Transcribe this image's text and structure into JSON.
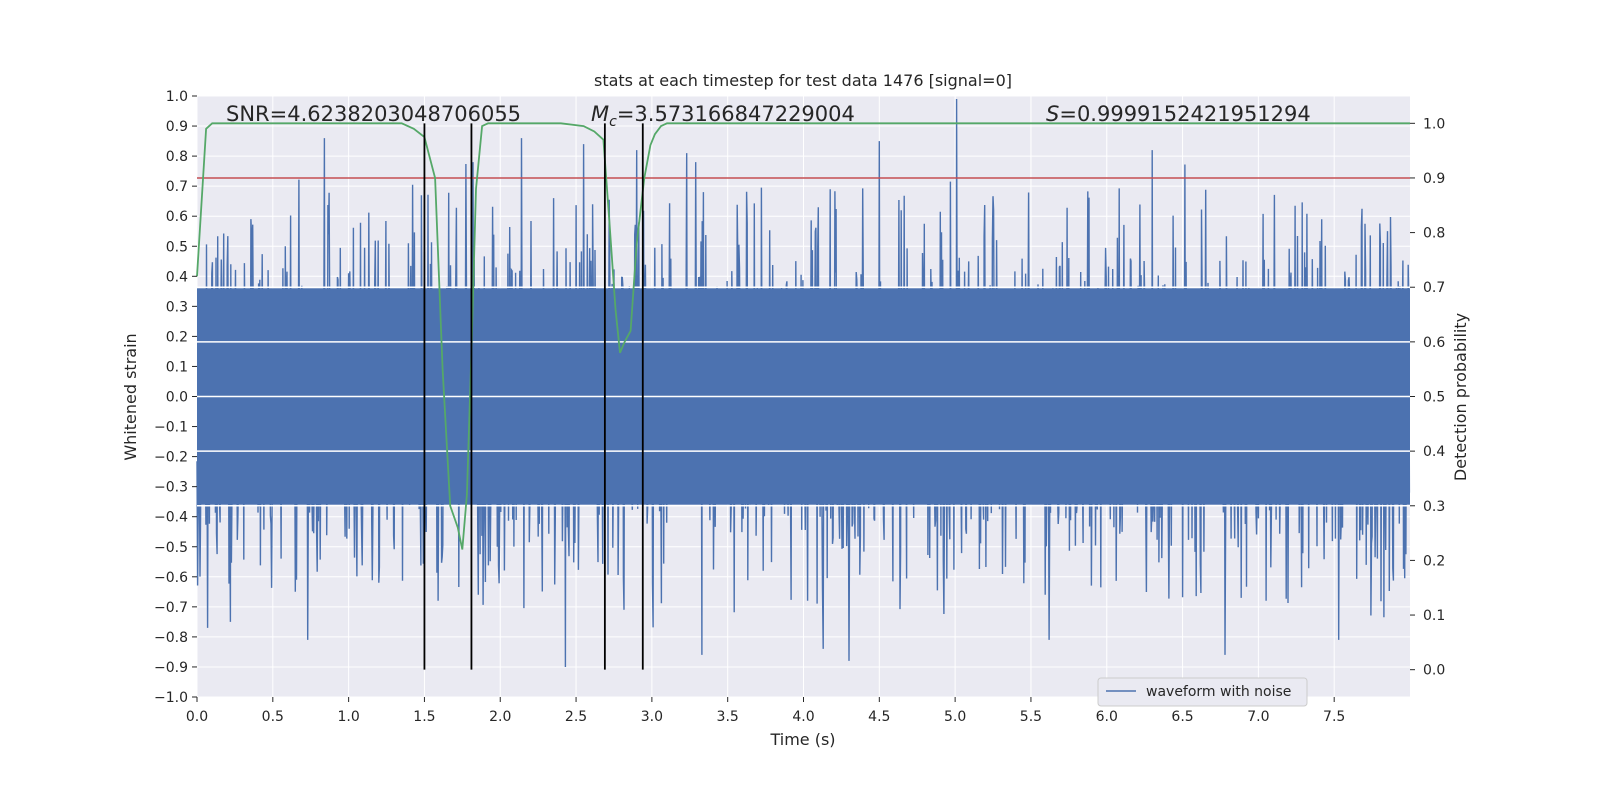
{
  "chart_data": {
    "type": "line",
    "title": "stats at each timestep for test data 1476 [signal=0]",
    "xlabel": "Time (s)",
    "ylabel": "Whitened strain",
    "ylabel_right": "Detection probability",
    "xlim": [
      0.0,
      8.0
    ],
    "ylim": [
      -1.0,
      1.0
    ],
    "ylim_right": [
      -0.05,
      1.05
    ],
    "x_ticks": [
      0.0,
      0.5,
      1.0,
      1.5,
      2.0,
      2.5,
      3.0,
      3.5,
      4.0,
      4.5,
      5.0,
      5.5,
      6.0,
      6.5,
      7.0,
      7.5
    ],
    "x_tick_labels": [
      "0.0",
      "0.5",
      "1.0",
      "1.5",
      "2.0",
      "2.5",
      "3.0",
      "3.5",
      "4.0",
      "4.5",
      "5.0",
      "5.5",
      "6.0",
      "6.5",
      "7.0",
      "7.5"
    ],
    "y_ticks": [
      -1.0,
      -0.9,
      -0.8,
      -0.7,
      -0.6,
      -0.5,
      -0.4,
      -0.3,
      -0.2,
      -0.1,
      0.0,
      0.1,
      0.2,
      0.3,
      0.4,
      0.5,
      0.6,
      0.7,
      0.8,
      0.9,
      1.0
    ],
    "y_tick_labels": [
      "−1.0",
      "−0.9",
      "−0.8",
      "−0.7",
      "−0.6",
      "−0.5",
      "−0.4",
      "−0.3",
      "−0.2",
      "−0.1",
      "0.0",
      "0.1",
      "0.2",
      "0.3",
      "0.4",
      "0.5",
      "0.6",
      "0.7",
      "0.8",
      "0.9",
      "1.0"
    ],
    "y_right_ticks": [
      0.0,
      0.1,
      0.2,
      0.3,
      0.4,
      0.5,
      0.6,
      0.7,
      0.8,
      0.9,
      1.0
    ],
    "y_right_tick_labels": [
      "0.0",
      "0.1",
      "0.2",
      "0.3",
      "0.4",
      "0.5",
      "0.6",
      "0.7",
      "0.8",
      "0.9",
      "1.0"
    ],
    "grid": true,
    "annotations": {
      "snr": "SNR=4.6238203048706055",
      "mc_symbol": "M",
      "mc_sub": "c",
      "mc_value": "=3.573166847229004",
      "s_symbol": "S",
      "s_value": "=0.9999152421951294"
    },
    "legend": {
      "position": "lower-right",
      "entries": [
        "waveform with noise"
      ]
    },
    "waveform": {
      "name": "waveform with noise",
      "color": "#4c72b0",
      "sample_rate_hz": 256,
      "duration_s": 8.0,
      "core_amplitude": 0.36,
      "peaks": [
        {
          "t": 0.84,
          "v": 0.86
        },
        {
          "t": 1.48,
          "v": 0.67
        },
        {
          "t": 1.82,
          "v": 0.78
        },
        {
          "t": 2.14,
          "v": 0.86
        },
        {
          "t": 2.55,
          "v": 0.84
        },
        {
          "t": 2.9,
          "v": 0.82
        },
        {
          "t": 3.23,
          "v": 0.81
        },
        {
          "t": 4.5,
          "v": 0.85
        },
        {
          "t": 5.01,
          "v": 0.99
        },
        {
          "t": 6.3,
          "v": 0.82
        },
        {
          "t": 0.73,
          "v": -0.81
        },
        {
          "t": 2.43,
          "v": -0.9
        },
        {
          "t": 3.33,
          "v": -0.86
        },
        {
          "t": 4.13,
          "v": -0.84
        },
        {
          "t": 4.3,
          "v": -0.88
        },
        {
          "t": 5.62,
          "v": -0.81
        },
        {
          "t": 6.78,
          "v": -0.86
        },
        {
          "t": 7.53,
          "v": -0.81
        },
        {
          "t": 0.07,
          "v": -0.77
        },
        {
          "t": 0.22,
          "v": -0.75
        }
      ]
    },
    "detection_probability": {
      "color": "#55a868",
      "x": [
        0.0,
        0.06,
        0.1,
        0.2,
        0.4,
        0.6,
        0.8,
        1.0,
        1.2,
        1.35,
        1.43,
        1.5,
        1.57,
        1.62,
        1.67,
        1.72,
        1.75,
        1.78,
        1.81,
        1.84,
        1.88,
        1.92,
        2.0,
        2.2,
        2.4,
        2.55,
        2.62,
        2.68,
        2.72,
        2.76,
        2.79,
        2.82,
        2.86,
        2.9,
        2.95,
        2.99,
        3.02,
        3.06,
        3.1,
        3.2,
        3.5,
        4.0,
        5.0,
        6.0,
        7.0,
        8.0
      ],
      "y": [
        0.72,
        0.99,
        1.0,
        1.0,
        1.0,
        1.0,
        1.0,
        1.0,
        1.0,
        1.0,
        0.99,
        0.975,
        0.9,
        0.55,
        0.3,
        0.26,
        0.22,
        0.32,
        0.58,
        0.88,
        0.995,
        1.0,
        1.0,
        1.0,
        1.0,
        0.995,
        0.985,
        0.97,
        0.82,
        0.66,
        0.58,
        0.6,
        0.62,
        0.78,
        0.9,
        0.96,
        0.98,
        0.995,
        1.0,
        1.0,
        1.0,
        1.0,
        1.0,
        1.0,
        1.0,
        1.0
      ]
    },
    "threshold": {
      "value": 0.9,
      "axis": "right",
      "color": "#c44e52"
    },
    "vertical_markers": {
      "x": [
        1.5,
        1.81,
        2.69,
        2.94
      ],
      "color": "#000000"
    },
    "horizontal_white_lines_right": [
      0.3,
      0.4,
      0.5,
      0.6,
      0.7
    ]
  }
}
